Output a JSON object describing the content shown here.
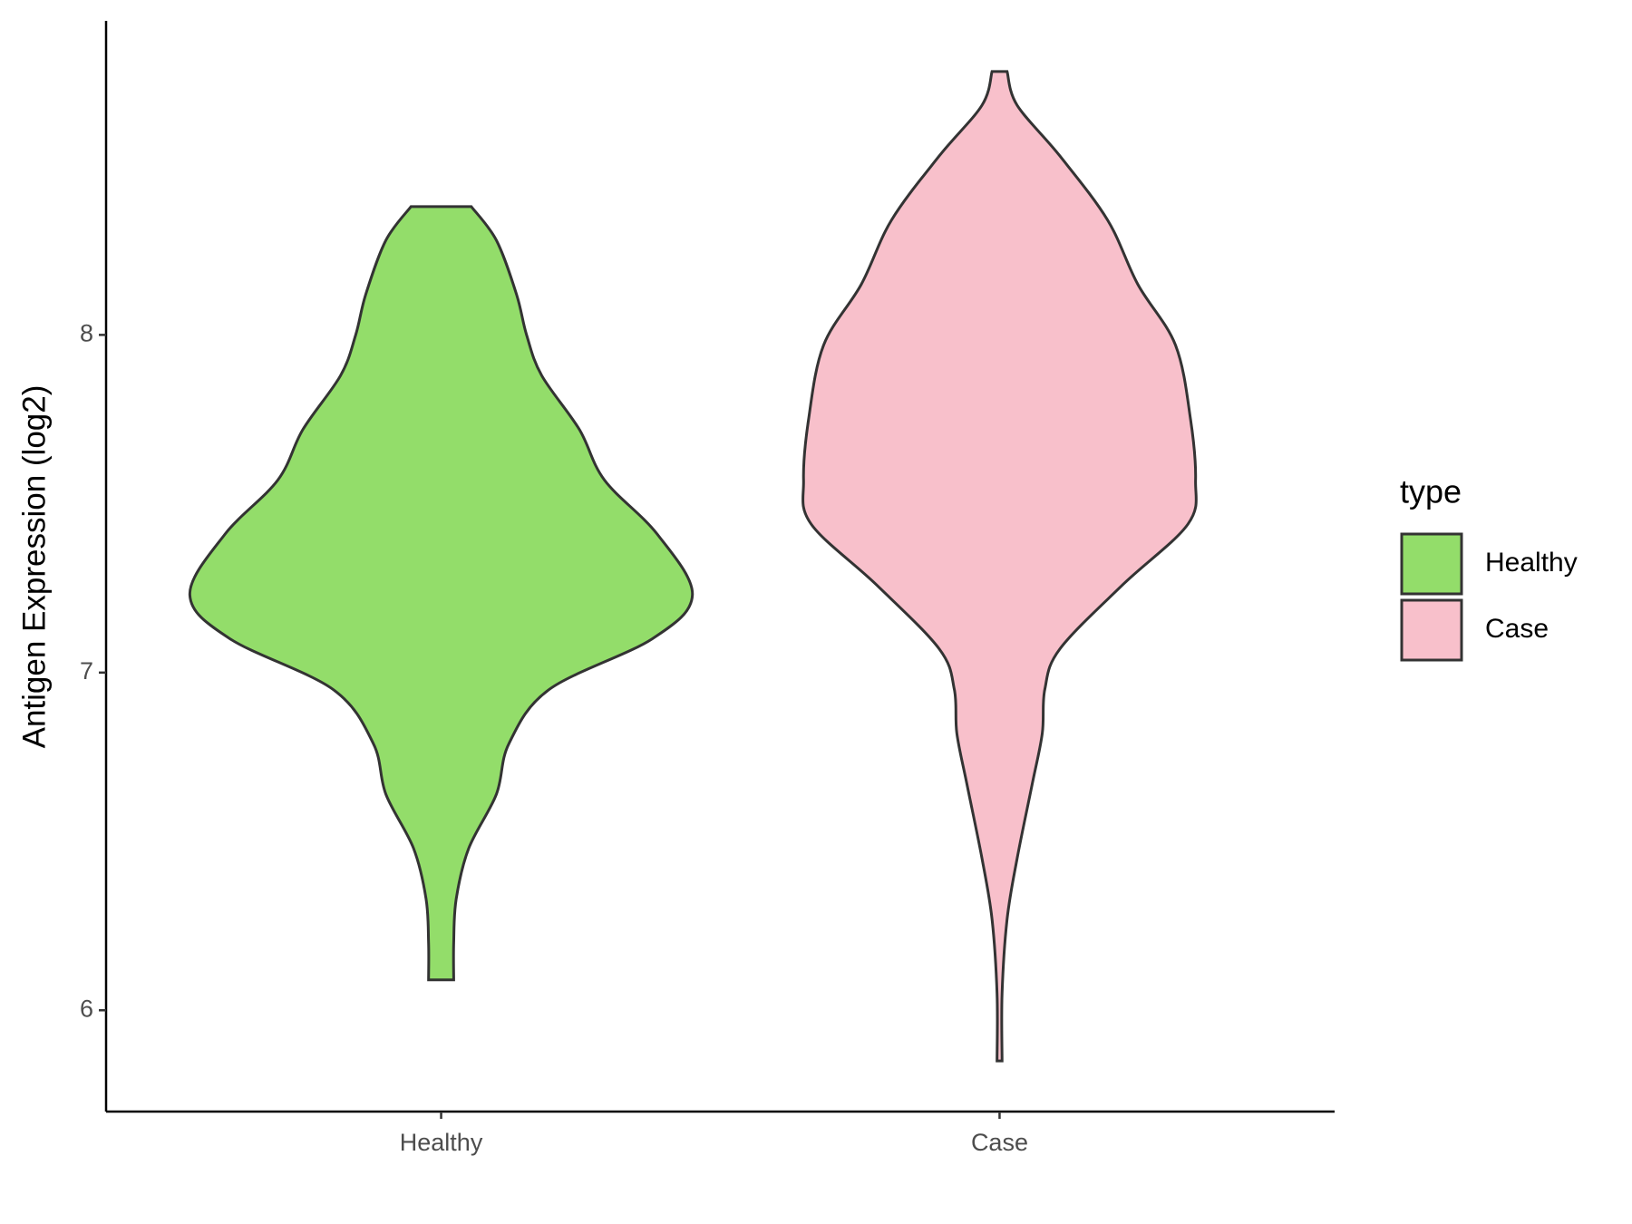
{
  "chart_data": {
    "type": "violin",
    "ylabel": "Antigen Expression (log2)",
    "categories": [
      "Healthy",
      "Case"
    ],
    "legend_title": "type",
    "legend": "right",
    "ylim": [
      5.7,
      8.93
    ],
    "yticks": [
      6,
      7,
      8
    ],
    "series": [
      {
        "name": "Healthy",
        "color": "#93dd6a",
        "y": [
          8.38,
          8.28,
          8.12,
          8.0,
          7.88,
          7.72,
          7.57,
          7.41,
          7.23,
          7.1,
          6.95,
          6.79,
          6.64,
          6.48,
          6.33,
          6.2,
          6.09
        ],
        "density": [
          0.12,
          0.22,
          0.3,
          0.34,
          0.4,
          0.55,
          0.65,
          0.86,
          1.0,
          0.84,
          0.43,
          0.27,
          0.22,
          0.11,
          0.06,
          0.05,
          0.05
        ]
      },
      {
        "name": "Case",
        "color": "#f8c0cb",
        "y": [
          8.78,
          8.68,
          8.53,
          8.34,
          8.15,
          7.97,
          7.75,
          7.57,
          7.44,
          7.26,
          7.07,
          6.95,
          6.82,
          6.67,
          6.45,
          6.27,
          6.05,
          5.85
        ],
        "density": [
          0.03,
          0.07,
          0.24,
          0.43,
          0.55,
          0.7,
          0.76,
          0.78,
          0.75,
          0.49,
          0.24,
          0.18,
          0.17,
          0.13,
          0.07,
          0.03,
          0.01,
          0.01
        ]
      }
    ]
  }
}
